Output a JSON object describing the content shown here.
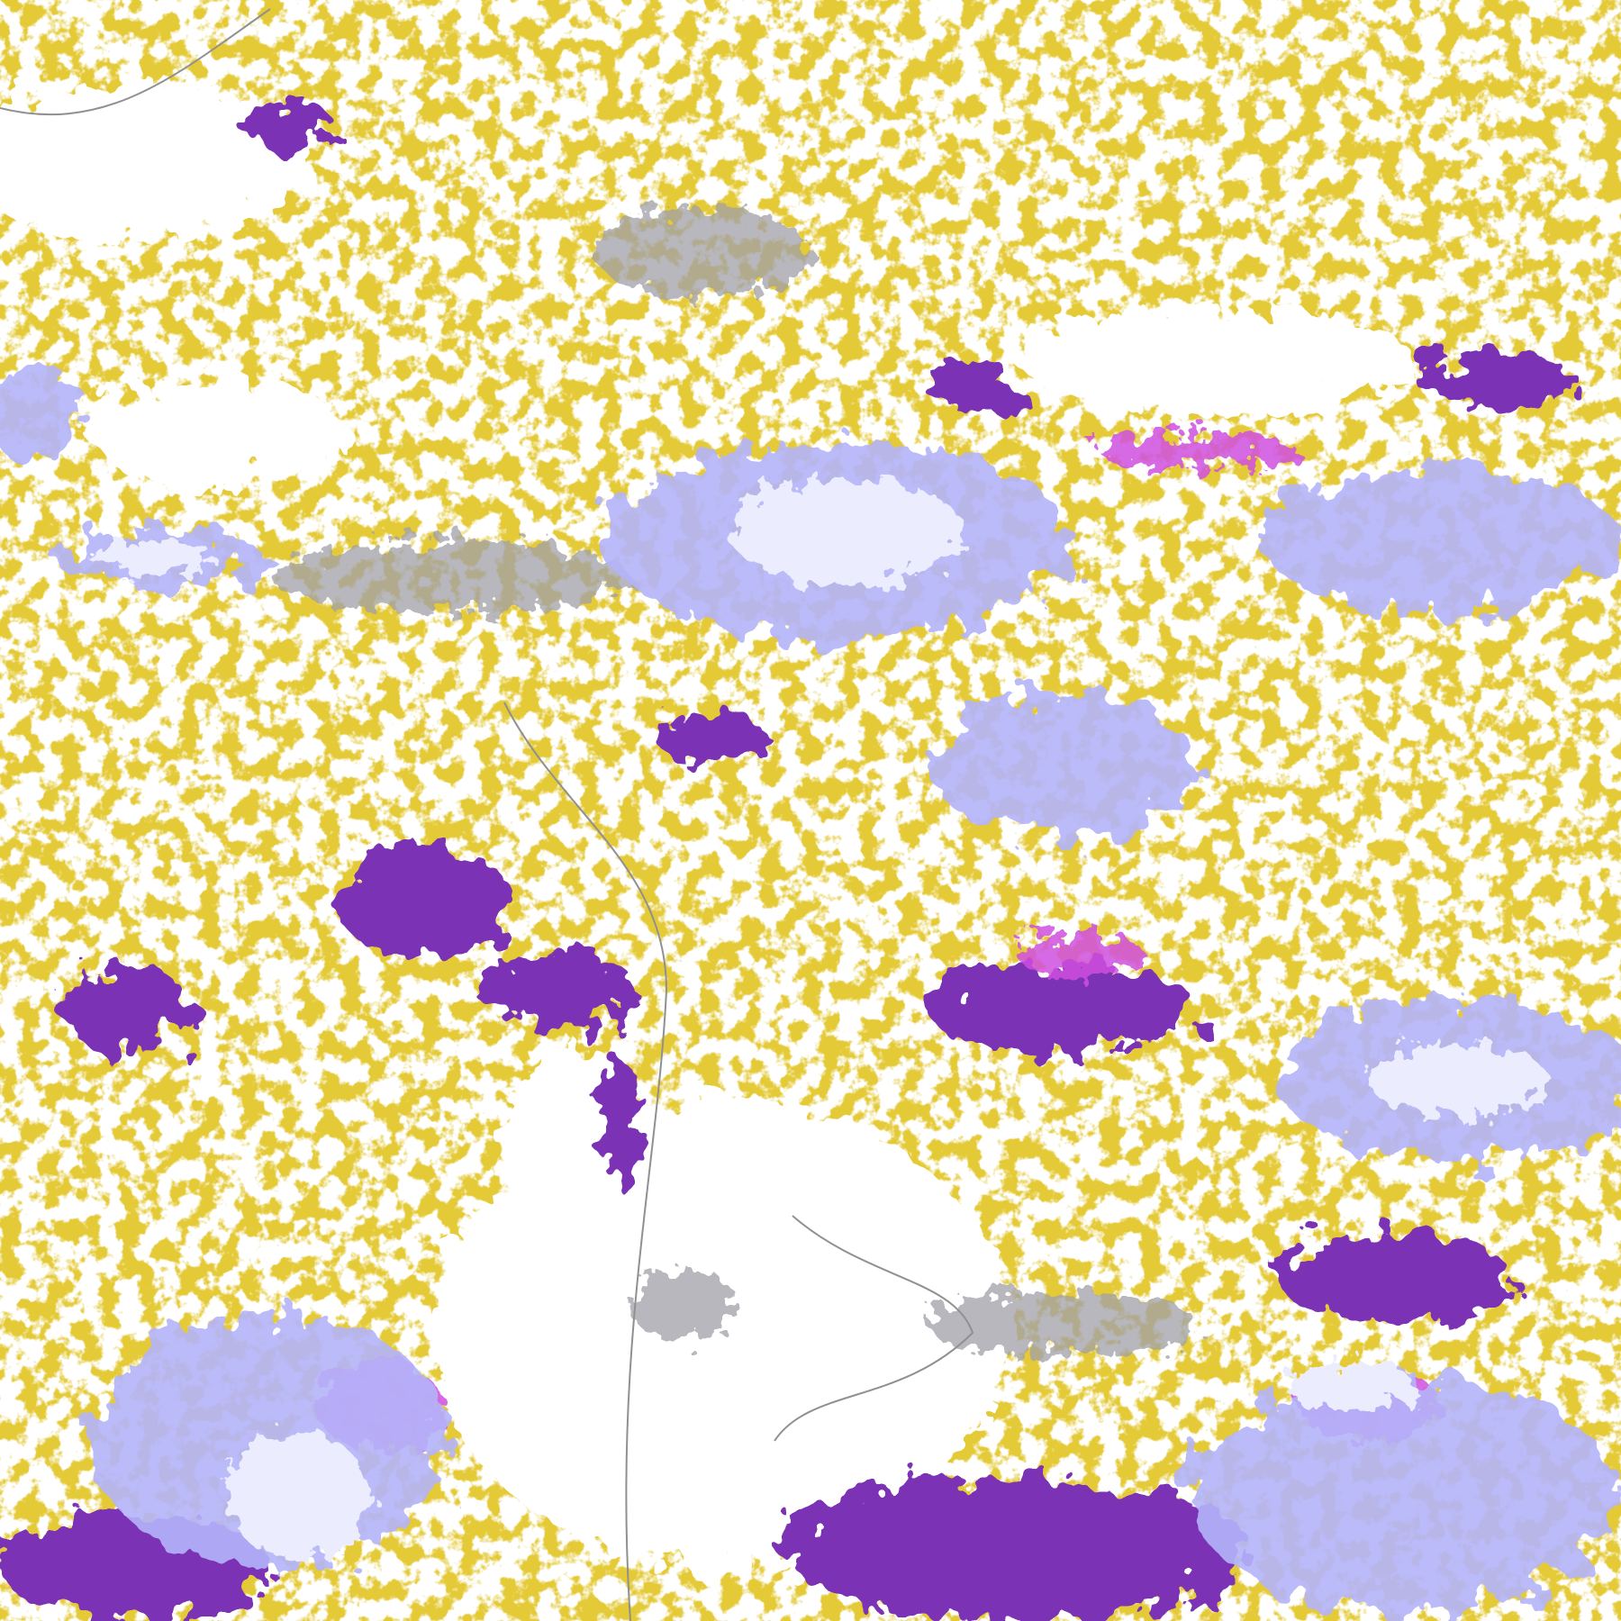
{
  "map": {
    "type": "classified-satellite-cloud-imagery",
    "colors": {
      "background": "#ffffff",
      "low_texture": "#c8960a",
      "thick_cloud": "#7b30b4",
      "convective": "#d050e0",
      "high_cloud": "#b4b4fa",
      "cloud_top": "#ececff",
      "thin_cloud": "#a0a0a8",
      "coastline": "#909090"
    }
  }
}
